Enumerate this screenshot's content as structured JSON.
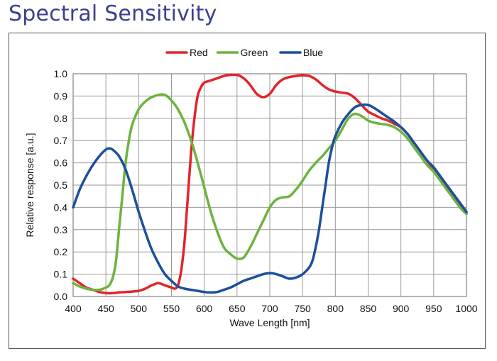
{
  "title": "Spectral Sensitivity",
  "chart_data": {
    "type": "line",
    "xlabel": "Wave Length [nm]",
    "ylabel": "Relative response [a.u.]",
    "xlim": [
      400,
      1000
    ],
    "ylim": [
      0,
      1.0
    ],
    "x_ticks": [
      "400",
      "450",
      "500",
      "550",
      "600",
      "650",
      "700",
      "750",
      "800",
      "850",
      "900",
      "950",
      "1000"
    ],
    "y_ticks": [
      "0.0",
      "0.1",
      "0.2",
      "0.3",
      "0.4",
      "0.5",
      "0.6",
      "0.7",
      "0.8",
      "0.9",
      "1.0"
    ],
    "grid": true,
    "legend_position": "top-center",
    "series": [
      {
        "name": "Red",
        "color": "#e0262b",
        "x": [
          400,
          410,
          420,
          430,
          440,
          450,
          460,
          470,
          480,
          490,
          500,
          510,
          520,
          530,
          540,
          550,
          555,
          560,
          565,
          570,
          575,
          580,
          585,
          590,
          595,
          600,
          610,
          620,
          630,
          640,
          650,
          660,
          670,
          680,
          690,
          700,
          710,
          720,
          730,
          740,
          750,
          760,
          770,
          780,
          790,
          800,
          810,
          820,
          830,
          840,
          850,
          860,
          870,
          880,
          890,
          900,
          910,
          920,
          930,
          940,
          950,
          960,
          970,
          980,
          990,
          1000
        ],
        "y": [
          0.08,
          0.06,
          0.04,
          0.03,
          0.02,
          0.015,
          0.015,
          0.018,
          0.02,
          0.022,
          0.025,
          0.035,
          0.05,
          0.06,
          0.05,
          0.04,
          0.035,
          0.05,
          0.12,
          0.25,
          0.45,
          0.65,
          0.8,
          0.9,
          0.94,
          0.96,
          0.97,
          0.98,
          0.99,
          0.995,
          0.995,
          0.98,
          0.95,
          0.91,
          0.895,
          0.91,
          0.95,
          0.975,
          0.985,
          0.99,
          0.993,
          0.99,
          0.975,
          0.95,
          0.93,
          0.92,
          0.915,
          0.91,
          0.89,
          0.86,
          0.83,
          0.815,
          0.8,
          0.79,
          0.775,
          0.76,
          0.73,
          0.69,
          0.65,
          0.61,
          0.57,
          0.53,
          0.49,
          0.45,
          0.41,
          0.375
        ]
      },
      {
        "name": "Green",
        "color": "#6db33f",
        "x": [
          400,
          410,
          420,
          430,
          440,
          450,
          455,
          460,
          465,
          470,
          475,
          480,
          485,
          490,
          500,
          510,
          520,
          530,
          540,
          550,
          560,
          570,
          580,
          590,
          600,
          610,
          620,
          630,
          640,
          650,
          660,
          670,
          680,
          690,
          700,
          710,
          720,
          730,
          740,
          750,
          760,
          770,
          780,
          790,
          800,
          810,
          820,
          830,
          840,
          850,
          860,
          870,
          880,
          890,
          900,
          910,
          920,
          930,
          940,
          950,
          960,
          970,
          980,
          990,
          1000
        ],
        "y": [
          0.06,
          0.045,
          0.035,
          0.03,
          0.03,
          0.04,
          0.05,
          0.08,
          0.15,
          0.3,
          0.45,
          0.6,
          0.7,
          0.77,
          0.84,
          0.875,
          0.895,
          0.905,
          0.905,
          0.88,
          0.84,
          0.78,
          0.7,
          0.6,
          0.49,
          0.38,
          0.29,
          0.22,
          0.19,
          0.17,
          0.175,
          0.22,
          0.28,
          0.34,
          0.4,
          0.435,
          0.445,
          0.45,
          0.48,
          0.52,
          0.565,
          0.6,
          0.63,
          0.665,
          0.7,
          0.75,
          0.8,
          0.82,
          0.81,
          0.79,
          0.78,
          0.775,
          0.77,
          0.76,
          0.74,
          0.71,
          0.67,
          0.63,
          0.59,
          0.56,
          0.52,
          0.48,
          0.44,
          0.4,
          0.37
        ]
      },
      {
        "name": "Blue",
        "color": "#1d4f9c",
        "x": [
          400,
          410,
          420,
          430,
          440,
          450,
          455,
          460,
          470,
          480,
          490,
          500,
          510,
          520,
          530,
          540,
          550,
          560,
          570,
          580,
          590,
          600,
          610,
          620,
          630,
          640,
          650,
          660,
          670,
          680,
          690,
          700,
          710,
          720,
          730,
          740,
          750,
          760,
          765,
          770,
          775,
          780,
          785,
          790,
          795,
          800,
          810,
          820,
          830,
          840,
          850,
          860,
          870,
          880,
          890,
          900,
          910,
          920,
          930,
          940,
          950,
          960,
          970,
          980,
          990,
          1000
        ],
        "y": [
          0.4,
          0.48,
          0.54,
          0.59,
          0.63,
          0.66,
          0.665,
          0.66,
          0.63,
          0.57,
          0.48,
          0.38,
          0.29,
          0.21,
          0.15,
          0.1,
          0.07,
          0.045,
          0.035,
          0.03,
          0.025,
          0.02,
          0.018,
          0.02,
          0.03,
          0.04,
          0.055,
          0.07,
          0.08,
          0.09,
          0.1,
          0.105,
          0.1,
          0.09,
          0.08,
          0.085,
          0.1,
          0.13,
          0.16,
          0.22,
          0.3,
          0.4,
          0.5,
          0.6,
          0.67,
          0.72,
          0.78,
          0.82,
          0.85,
          0.86,
          0.86,
          0.845,
          0.825,
          0.805,
          0.785,
          0.76,
          0.73,
          0.69,
          0.65,
          0.61,
          0.58,
          0.54,
          0.5,
          0.46,
          0.42,
          0.38
        ]
      }
    ]
  }
}
